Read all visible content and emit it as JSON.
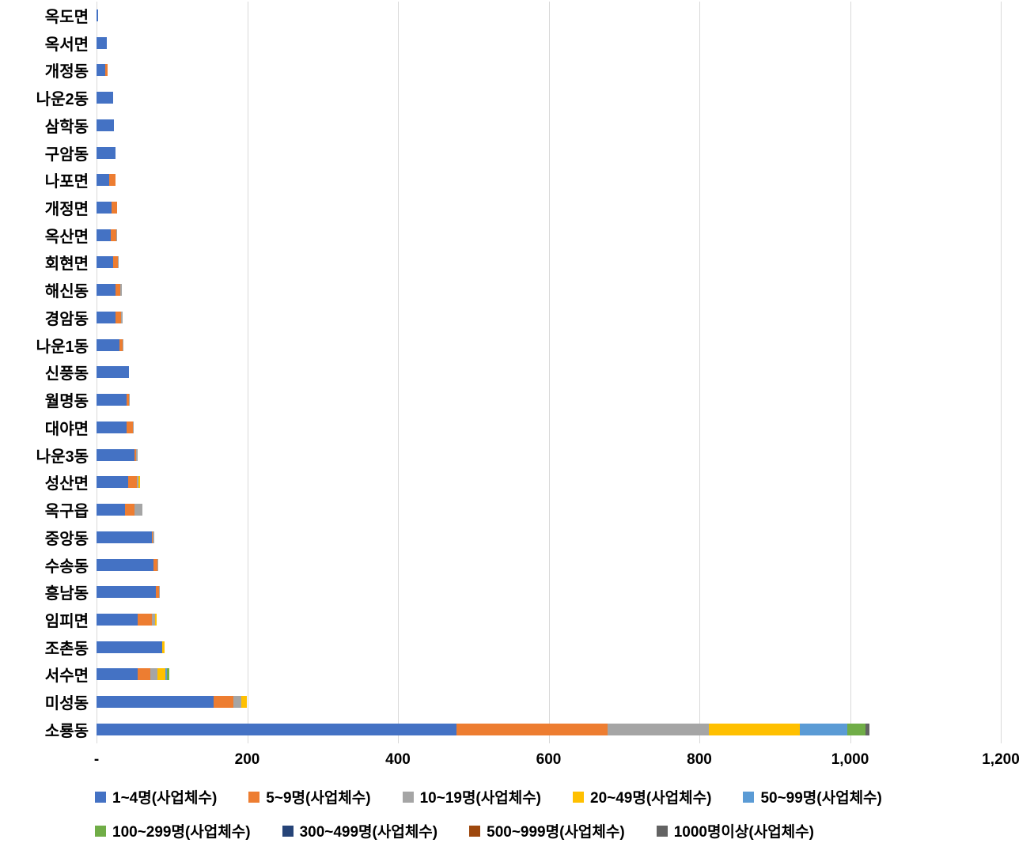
{
  "chart_data": {
    "type": "bar",
    "orientation": "horizontal",
    "stacked": true,
    "title": "",
    "xlabel": "",
    "ylabel": "",
    "grid": true,
    "legend_position": "bottom",
    "legend_rows": [
      5,
      4
    ],
    "categories": [
      "옥도면",
      "옥서면",
      "개정동",
      "나운2동",
      "삼학동",
      "구암동",
      "나포면",
      "개정면",
      "옥산면",
      "회현면",
      "해신동",
      "경암동",
      "나운1동",
      "신풍동",
      "월명동",
      "대야면",
      "나운3동",
      "성산면",
      "옥구읍",
      "중앙동",
      "수송동",
      "흥남동",
      "임피면",
      "조촌동",
      "서수면",
      "미성동",
      "소룡동"
    ],
    "series": [
      {
        "name": "1~4명(사업체수)",
        "color": "#4472C4",
        "values": [
          2,
          14,
          12,
          22,
          23,
          25,
          17,
          20,
          19,
          22,
          25,
          25,
          30,
          43,
          40,
          40,
          50,
          42,
          38,
          73,
          76,
          79,
          55,
          87,
          55,
          155,
          478
        ]
      },
      {
        "name": "5~9명(사업체수)",
        "color": "#ED7D31",
        "values": [
          0,
          0,
          3,
          0,
          0,
          0,
          8,
          7,
          7,
          6,
          7,
          8,
          5,
          0,
          3,
          8,
          3,
          12,
          12,
          2,
          5,
          4,
          18,
          0,
          16,
          27,
          200
        ]
      },
      {
        "name": "10~19명(사업체수)",
        "color": "#A5A5A5",
        "values": [
          0,
          0,
          0,
          0,
          0,
          0,
          0,
          0,
          1,
          1,
          2,
          2,
          1,
          0,
          1,
          1,
          2,
          2,
          11,
          2,
          1,
          1,
          5,
          0,
          10,
          10,
          135
        ]
      },
      {
        "name": "20~49명(사업체수)",
        "color": "#FFC000",
        "values": [
          0,
          0,
          0,
          0,
          0,
          0,
          0,
          0,
          0,
          0,
          0,
          0,
          0,
          0,
          0,
          0,
          0,
          2,
          0,
          0,
          0,
          0,
          2,
          3,
          10,
          8,
          120
        ]
      },
      {
        "name": "50~99명(사업체수)",
        "color": "#5B9BD5",
        "values": [
          0,
          0,
          0,
          0,
          0,
          0,
          0,
          0,
          0,
          0,
          0,
          0,
          0,
          0,
          0,
          0,
          0,
          0,
          0,
          0,
          0,
          0,
          0,
          0,
          3,
          0,
          63
        ]
      },
      {
        "name": "100~299명(사업체수)",
        "color": "#70AD47",
        "values": [
          0,
          0,
          0,
          0,
          0,
          0,
          0,
          0,
          0,
          0,
          0,
          0,
          0,
          0,
          0,
          0,
          0,
          0,
          0,
          0,
          0,
          0,
          0,
          0,
          3,
          0,
          25
        ]
      },
      {
        "name": "300~499명(사업체수)",
        "color": "#264478",
        "values": [
          0,
          0,
          0,
          0,
          0,
          0,
          0,
          0,
          0,
          0,
          0,
          0,
          0,
          0,
          0,
          0,
          0,
          0,
          0,
          0,
          0,
          0,
          0,
          0,
          0,
          0,
          0
        ]
      },
      {
        "name": "500~999명(사업체수)",
        "color": "#9E480E",
        "values": [
          0,
          0,
          0,
          0,
          0,
          0,
          0,
          0,
          0,
          0,
          0,
          0,
          0,
          0,
          0,
          0,
          0,
          0,
          0,
          0,
          0,
          0,
          0,
          0,
          0,
          0,
          0
        ]
      },
      {
        "name": "1000명이상(사업체수)",
        "color": "#636363",
        "values": [
          0,
          0,
          0,
          0,
          0,
          0,
          0,
          0,
          0,
          0,
          0,
          0,
          0,
          0,
          0,
          0,
          0,
          0,
          0,
          0,
          0,
          0,
          0,
          0,
          0,
          0,
          5
        ]
      }
    ],
    "x_axis": {
      "ticks": [
        "-",
        "200",
        "400",
        "600",
        "800",
        "1,000",
        "1,200"
      ],
      "tick_values": [
        0,
        200,
        400,
        600,
        800,
        1000,
        1200
      ],
      "max": 1200
    }
  }
}
